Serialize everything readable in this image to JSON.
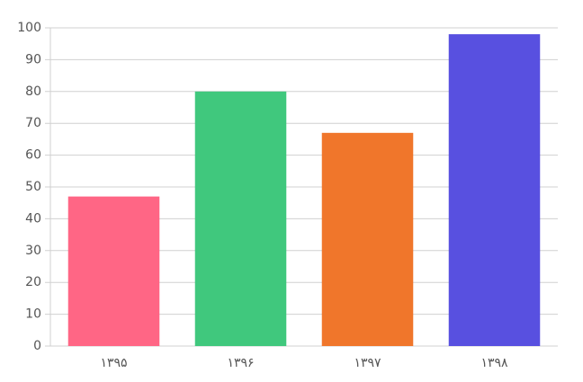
{
  "chart_data": {
    "type": "bar",
    "categories": [
      "۱۳۹۵",
      "۱۳۹۶",
      "۱۳۹۷",
      "۱۳۹۸"
    ],
    "values": [
      47,
      80,
      67,
      98
    ],
    "colors": [
      "#ff6685",
      "#40c87d",
      "#f0762b",
      "#5850e0"
    ],
    "ylim": [
      0,
      100
    ],
    "yticks": [
      0,
      10,
      20,
      30,
      40,
      50,
      60,
      70,
      80,
      90,
      100
    ],
    "grid": true
  }
}
